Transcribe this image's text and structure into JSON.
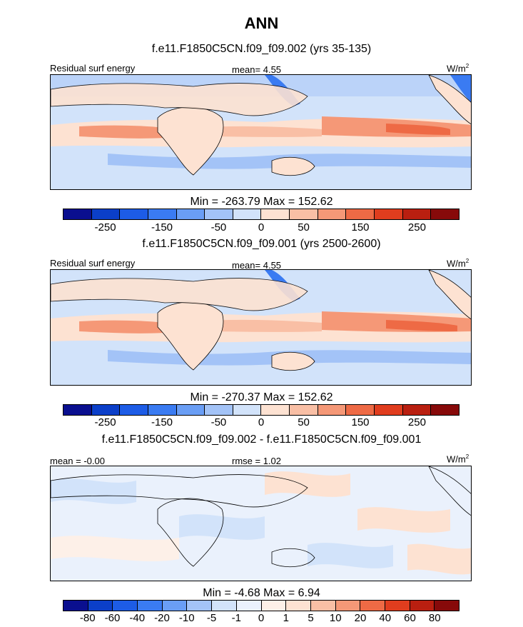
{
  "title": "ANN",
  "panels": [
    {
      "case_title": "f.e11.F1850C5CN.f09_f09.002 (yrs 35-135)",
      "left_label": "Residual surf energy",
      "center_label": "mean=   4.55",
      "units": "W/m",
      "units_exp": "2",
      "minmax": "Min = -263.79 Max = 152.62",
      "tick_labels": [
        "-250",
        "-150",
        "-50",
        "0",
        "50",
        "150",
        "250"
      ],
      "tick_slots": [
        1.5,
        3.5,
        5.5,
        7,
        8.5,
        10.5,
        12.5
      ]
    },
    {
      "case_title": "f.e11.F1850C5CN.f09_f09.001 (yrs 2500-2600)",
      "left_label": "Residual surf energy",
      "center_label": "mean=   4.55",
      "units": "W/m",
      "units_exp": "2",
      "minmax": "Min = -270.37 Max = 152.62",
      "tick_labels": [
        "-250",
        "-150",
        "-50",
        "0",
        "50",
        "150",
        "250"
      ],
      "tick_slots": [
        1.5,
        3.5,
        5.5,
        7,
        8.5,
        10.5,
        12.5
      ]
    },
    {
      "case_title": "f.e11.F1850C5CN.f09_f09.002 - f.e11.F1850C5CN.f09_f09.001",
      "left_label": "mean =  -0.00",
      "center_label": "rmse =   1.02",
      "units": "W/m",
      "units_exp": "2",
      "minmax": "Min =  -4.68 Max =   6.94",
      "tick_labels": [
        "-80",
        "-60",
        "-40",
        "-20",
        "-10",
        "-5",
        "-1",
        "0",
        "1",
        "5",
        "10",
        "20",
        "40",
        "60",
        "80"
      ],
      "tick_slots": [
        1,
        2,
        3,
        4,
        5,
        6,
        7,
        8,
        9,
        10,
        11,
        12,
        13,
        14,
        15
      ]
    }
  ],
  "colors": {
    "abs_scale": [
      "#0a0f8f",
      "#0b3fc9",
      "#1d5ce6",
      "#3a7bf2",
      "#6a9ef5",
      "#a3c3f7",
      "#d2e3fa",
      "#fde2d2",
      "#f9bfa5",
      "#f59877",
      "#ee6a45",
      "#e03d1e",
      "#b91f10",
      "#870a0a"
    ],
    "diff_scale": [
      "#0a0f8f",
      "#0b3fc9",
      "#1d5ce6",
      "#3a7bf2",
      "#6a9ef5",
      "#a3c3f7",
      "#d2e3fa",
      "#eaf1fc",
      "#fdf0e8",
      "#fde2d2",
      "#f9bfa5",
      "#f59877",
      "#ee6a45",
      "#e03d1e",
      "#b91f10",
      "#870a0a"
    ]
  }
}
